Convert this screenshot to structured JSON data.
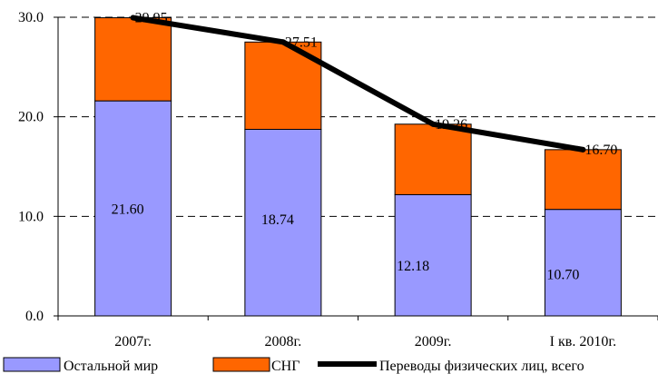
{
  "chart_data": {
    "type": "bar",
    "stacked": true,
    "categories": [
      "2007г.",
      "2008г.",
      "2009г.",
      "I кв. 2010г."
    ],
    "series": [
      {
        "name": "Остальной мир",
        "type": "bar",
        "values": [
          21.6,
          18.74,
          12.18,
          10.7
        ],
        "labels": [
          "21.60",
          "18.74",
          "12.18",
          "10.70"
        ],
        "color": "#9999FF"
      },
      {
        "name": "СНГ",
        "type": "bar",
        "values": [
          8.35,
          8.77,
          7.08,
          6.0
        ],
        "color": "#FF6600"
      },
      {
        "name": "Переводы физических лиц, всего",
        "type": "line",
        "values": [
          29.95,
          27.51,
          19.26,
          16.7
        ],
        "labels": [
          "29.95",
          "27.51",
          "19.26",
          "16.70"
        ],
        "color": "#000000"
      }
    ],
    "ylim": [
      0,
      30
    ],
    "yticks": [
      "0.0",
      "10.0",
      "20.0",
      "30.0"
    ],
    "grid": "horizontal dashed",
    "legend": "bottom"
  }
}
